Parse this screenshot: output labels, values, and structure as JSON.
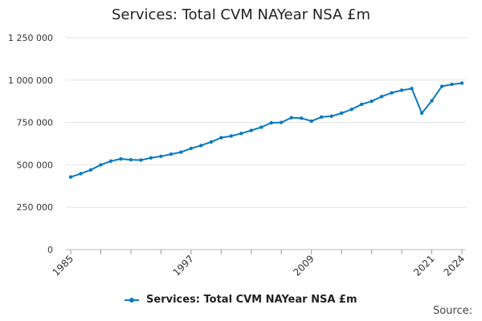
{
  "chart_data": {
    "type": "line",
    "title": "Services: Total CVM NAYear NSA £m",
    "xlabel": "",
    "ylabel": "",
    "x_tick_labels": [
      "1985",
      "1997",
      "2009",
      "2021",
      "2024"
    ],
    "y_tick_labels": [
      "0",
      "250 000",
      "500 000",
      "750 000",
      "1 000 000",
      "1 250 000"
    ],
    "ylim": [
      0,
      1250000
    ],
    "xlim": [
      1985,
      2024
    ],
    "grid": true,
    "legend_position": "bottom",
    "series": [
      {
        "name": "Services: Total CVM NAYear NSA £m",
        "color": "#0a7abf",
        "x": [
          1985,
          1986,
          1987,
          1988,
          1989,
          1990,
          1991,
          1992,
          1993,
          1994,
          1995,
          1996,
          1997,
          1998,
          1999,
          2000,
          2001,
          2002,
          2003,
          2004,
          2005,
          2006,
          2007,
          2008,
          2009,
          2010,
          2011,
          2012,
          2013,
          2014,
          2015,
          2016,
          2017,
          2018,
          2019,
          2020,
          2021,
          2022,
          2023,
          2024
        ],
        "values": [
          428000,
          448000,
          470000,
          500000,
          522000,
          535000,
          530000,
          528000,
          541000,
          550000,
          563000,
          575000,
          597000,
          614000,
          635000,
          660000,
          670000,
          685000,
          703000,
          722000,
          748000,
          750000,
          778000,
          775000,
          758000,
          782000,
          787000,
          805000,
          827000,
          857000,
          875000,
          903000,
          925000,
          940000,
          950000,
          805000,
          878000,
          963000,
          975000,
          982000
        ]
      }
    ]
  },
  "source_label": "Source:"
}
